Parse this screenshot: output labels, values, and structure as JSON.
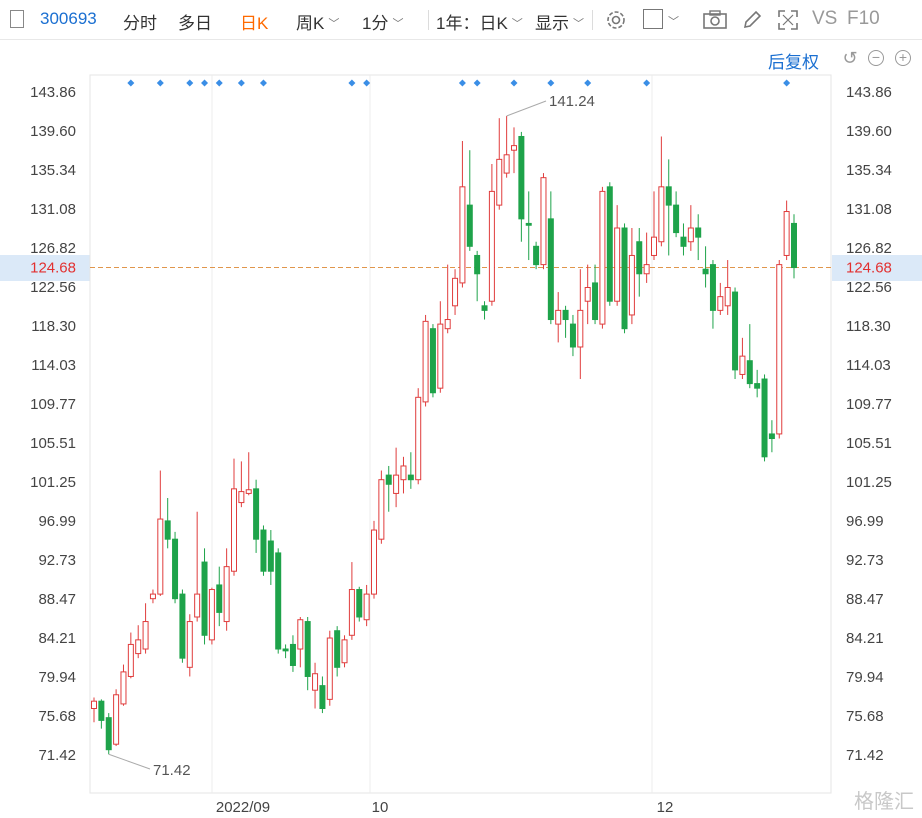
{
  "toolbar": {
    "code": "300693",
    "tabs": [
      "分时",
      "多日",
      "日K",
      "周K",
      "1分"
    ],
    "active_tab": "日K",
    "range": "1年：日K",
    "display": "显示",
    "vs": "VS",
    "f10": "F10"
  },
  "adjust_label": "后复权",
  "watermark": "格隆汇",
  "current_price": "124.68",
  "chart_data": {
    "type": "candlestick",
    "y_ticks": [
      143.86,
      139.6,
      135.34,
      131.08,
      126.82,
      122.56,
      118.3,
      114.03,
      109.77,
      105.51,
      101.25,
      96.99,
      92.73,
      88.47,
      84.21,
      79.94,
      75.68,
      71.42
    ],
    "x_labels": [
      "2022/09",
      "10",
      "12"
    ],
    "annotations": {
      "high": "141.24",
      "low": "71.42"
    },
    "candles": [
      [
        76.5,
        77.3,
        77.7,
        75.0
      ],
      [
        77.3,
        75.2,
        77.5,
        74.3
      ],
      [
        75.5,
        72.0,
        76.0,
        71.5
      ],
      [
        72.6,
        78.0,
        78.6,
        72.4
      ],
      [
        77.0,
        80.5,
        81.3,
        76.8
      ],
      [
        80.0,
        83.5,
        84.8,
        79.8
      ],
      [
        82.5,
        84.0,
        85.6,
        82.0
      ],
      [
        83.0,
        86.0,
        88.0,
        82.5
      ],
      [
        88.5,
        89.0,
        89.5,
        88.0
      ],
      [
        89.0,
        97.2,
        102.5,
        88.8
      ],
      [
        97.0,
        95.0,
        99.5,
        94.0
      ],
      [
        95.0,
        88.5,
        95.8,
        88.0
      ],
      [
        89.0,
        82.0,
        89.5,
        81.5
      ],
      [
        81.0,
        86.0,
        86.8,
        80.0
      ],
      [
        86.5,
        89.0,
        98.0,
        86.0
      ],
      [
        92.5,
        84.5,
        94.0,
        83.5
      ],
      [
        84.0,
        89.5,
        89.7,
        83.5
      ],
      [
        90.0,
        87.0,
        92.0,
        85.5
      ],
      [
        86.0,
        92.0,
        94.0,
        85.0
      ],
      [
        91.5,
        100.5,
        103.8,
        91.0
      ],
      [
        99.0,
        100.2,
        103.5,
        98.5
      ],
      [
        100.0,
        100.4,
        104.5,
        99.8
      ],
      [
        100.5,
        95.0,
        101.5,
        93.5
      ],
      [
        96.0,
        91.5,
        96.5,
        91.0
      ],
      [
        94.8,
        91.5,
        96.0,
        90.0
      ],
      [
        93.5,
        83.0,
        94.0,
        82.5
      ],
      [
        83.0,
        82.8,
        83.5,
        82.0
      ],
      [
        83.5,
        81.2,
        84.5,
        80.5
      ],
      [
        83.0,
        86.2,
        86.5,
        81.0
      ],
      [
        86.0,
        80.0,
        86.5,
        78.5
      ],
      [
        78.5,
        80.3,
        81.5,
        76.5
      ],
      [
        79.0,
        76.5,
        80.0,
        76.0
      ],
      [
        77.5,
        84.2,
        85.0,
        76.8
      ],
      [
        85.0,
        81.0,
        85.5,
        80.0
      ],
      [
        81.5,
        84.0,
        84.5,
        81.0
      ],
      [
        84.5,
        89.5,
        92.5,
        84.0
      ],
      [
        89.5,
        86.5,
        89.8,
        86.0
      ],
      [
        86.2,
        89.0,
        90.0,
        85.5
      ],
      [
        89.0,
        96.0,
        97.0,
        88.5
      ],
      [
        95.0,
        101.5,
        102.5,
        94.5
      ],
      [
        102.0,
        101.0,
        103.0,
        98.0
      ],
      [
        100.0,
        102.0,
        105.0,
        98.5
      ],
      [
        101.5,
        103.0,
        104.0,
        100.0
      ],
      [
        102.0,
        101.5,
        104.5,
        100.5
      ],
      [
        101.5,
        110.5,
        111.5,
        101.0
      ],
      [
        110.0,
        118.8,
        119.5,
        109.5
      ],
      [
        118.0,
        111.0,
        118.5,
        110.5
      ],
      [
        111.5,
        118.5,
        121.0,
        111.0
      ],
      [
        118.0,
        119.0,
        125.0,
        117.5
      ],
      [
        120.5,
        123.5,
        124.5,
        119.5
      ],
      [
        123.0,
        133.5,
        138.5,
        122.5
      ],
      [
        131.5,
        127.0,
        137.5,
        126.5
      ],
      [
        126.0,
        124.0,
        126.5,
        121.0
      ],
      [
        120.5,
        120.0,
        121.0,
        119.0
      ],
      [
        121.0,
        133.0,
        136.0,
        120.5
      ],
      [
        131.5,
        136.5,
        141.0,
        131.0
      ],
      [
        135.0,
        137.0,
        141.24,
        134.5
      ],
      [
        137.5,
        138.0,
        140.0,
        135.0
      ],
      [
        139.0,
        130.0,
        139.5,
        127.5
      ],
      [
        129.5,
        129.3,
        133.0,
        125.5
      ],
      [
        127.0,
        125.0,
        127.5,
        124.5
      ],
      [
        125.0,
        134.5,
        135.0,
        124.5
      ],
      [
        130.0,
        119.0,
        133.0,
        118.5
      ],
      [
        118.5,
        120.0,
        122.0,
        116.5
      ],
      [
        120.0,
        119.0,
        120.5,
        117.0
      ],
      [
        118.5,
        116.0,
        119.5,
        115.0
      ],
      [
        116.0,
        120.0,
        124.5,
        112.5
      ],
      [
        121.0,
        122.5,
        125.0,
        118.5
      ],
      [
        123.0,
        119.0,
        125.0,
        118.5
      ],
      [
        118.5,
        133.0,
        133.5,
        118.0
      ],
      [
        133.5,
        121.0,
        134.0,
        120.5
      ],
      [
        121.0,
        129.0,
        131.5,
        120.5
      ],
      [
        129.0,
        118.0,
        129.5,
        117.5
      ],
      [
        119.5,
        126.0,
        129.0,
        118.5
      ],
      [
        127.5,
        124.0,
        129.0,
        121.5
      ],
      [
        124.0,
        125.0,
        128.5,
        123.0
      ],
      [
        126.0,
        128.0,
        133.0,
        125.5
      ],
      [
        127.5,
        133.5,
        139.0,
        127.0
      ],
      [
        133.5,
        131.5,
        136.5,
        126.0
      ],
      [
        131.5,
        128.5,
        133.0,
        128.0
      ],
      [
        128.0,
        127.0,
        129.5,
        126.0
      ],
      [
        127.5,
        129.0,
        131.5,
        126.5
      ],
      [
        129.0,
        128.0,
        130.5,
        125.5
      ],
      [
        124.5,
        124.0,
        127.0,
        122.5
      ],
      [
        125.0,
        120.0,
        125.5,
        118.0
      ],
      [
        120.0,
        121.5,
        123.0,
        119.5
      ],
      [
        120.5,
        122.5,
        125.5,
        119.5
      ],
      [
        122.0,
        113.5,
        122.5,
        112.5
      ],
      [
        113.0,
        115.0,
        117.0,
        112.5
      ],
      [
        114.5,
        112.0,
        118.5,
        111.5
      ],
      [
        112.0,
        111.5,
        113.5,
        110.5
      ],
      [
        112.5,
        104.0,
        113.0,
        103.5
      ],
      [
        106.5,
        106.0,
        108.0,
        104.5
      ],
      [
        106.5,
        125.0,
        125.5,
        106.0
      ],
      [
        126.0,
        130.8,
        132.0,
        125.5
      ],
      [
        129.5,
        124.68,
        130.5,
        123.5
      ]
    ],
    "event_markers": [
      5,
      9,
      13,
      15,
      17,
      20,
      23,
      35,
      37,
      50,
      52,
      57,
      62,
      67,
      75,
      94
    ]
  }
}
